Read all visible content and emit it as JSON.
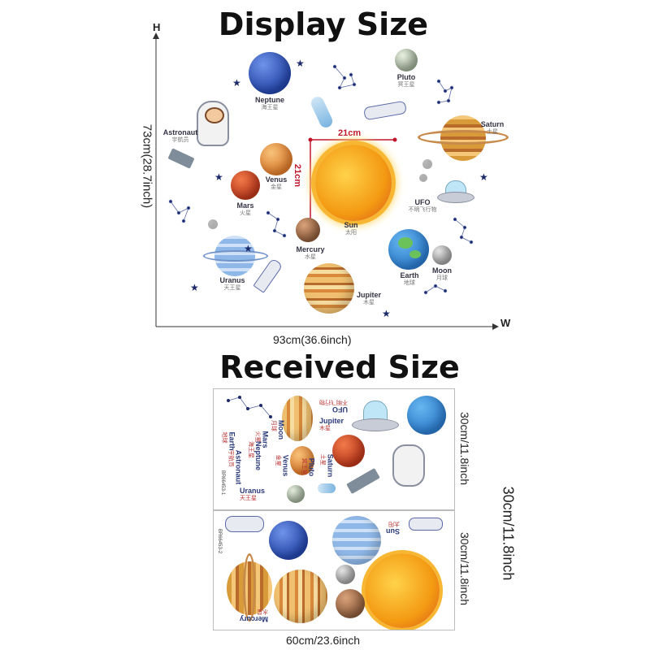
{
  "display": {
    "heading": "Display Size",
    "axis_h": "H",
    "axis_w": "W",
    "height_label": "73cm(28.7inch)",
    "width_label": "93cm(36.6inch)",
    "sun_width": "21cm",
    "sun_height": "21cm",
    "planets": [
      {
        "name": "Neptune",
        "cn": "海王星"
      },
      {
        "name": "Pluto",
        "cn": "冥王星"
      },
      {
        "name": "Saturn",
        "cn": "土星"
      },
      {
        "name": "Astronaut",
        "cn": "宇航员"
      },
      {
        "name": "Venus",
        "cn": "金星"
      },
      {
        "name": "Mars",
        "cn": "火星"
      },
      {
        "name": "Sun",
        "cn": "太阳"
      },
      {
        "name": "UFO",
        "cn": "不明飞行物"
      },
      {
        "name": "Mercury",
        "cn": "水星"
      },
      {
        "name": "Uranus",
        "cn": "天王星"
      },
      {
        "name": "Earth",
        "cn": "地球"
      },
      {
        "name": "Moon",
        "cn": "月球"
      },
      {
        "name": "Jupiter",
        "cn": "木星"
      }
    ]
  },
  "received": {
    "heading": "Received Size",
    "width_label": "60cm/23.6inch",
    "height_total": "30cm/11.8inch",
    "sheet1_height": "30cm/11.8inch",
    "sheet2_height": "30cm/11.8inch",
    "sheet1_code": "BR66453-1",
    "sheet2_code": "BR66453-2",
    "sheet1_labels": [
      {
        "name": "UFO",
        "cn": "不明飞行物"
      },
      {
        "name": "Jupiter",
        "cn": "木星"
      },
      {
        "name": "Moon",
        "cn": "月球"
      },
      {
        "name": "Mars",
        "cn": "火星"
      },
      {
        "name": "Earth",
        "cn": "地球"
      },
      {
        "name": "Neptune",
        "cn": "海王星"
      },
      {
        "name": "Astronaut",
        "cn": "宇航员"
      },
      {
        "name": "Venus",
        "cn": "金星"
      },
      {
        "name": "Saturn",
        "cn": "土星"
      },
      {
        "name": "Pluto",
        "cn": "冥王星"
      },
      {
        "name": "Uranus",
        "cn": "天王星"
      }
    ],
    "sheet2_labels": [
      {
        "name": "Sun",
        "cn": "太阳"
      },
      {
        "name": "Mercury",
        "cn": "水星"
      }
    ]
  },
  "colors": {
    "dimension_line": "#333333",
    "sun_measure": "#c0152b",
    "star": "#1c2a6b"
  }
}
